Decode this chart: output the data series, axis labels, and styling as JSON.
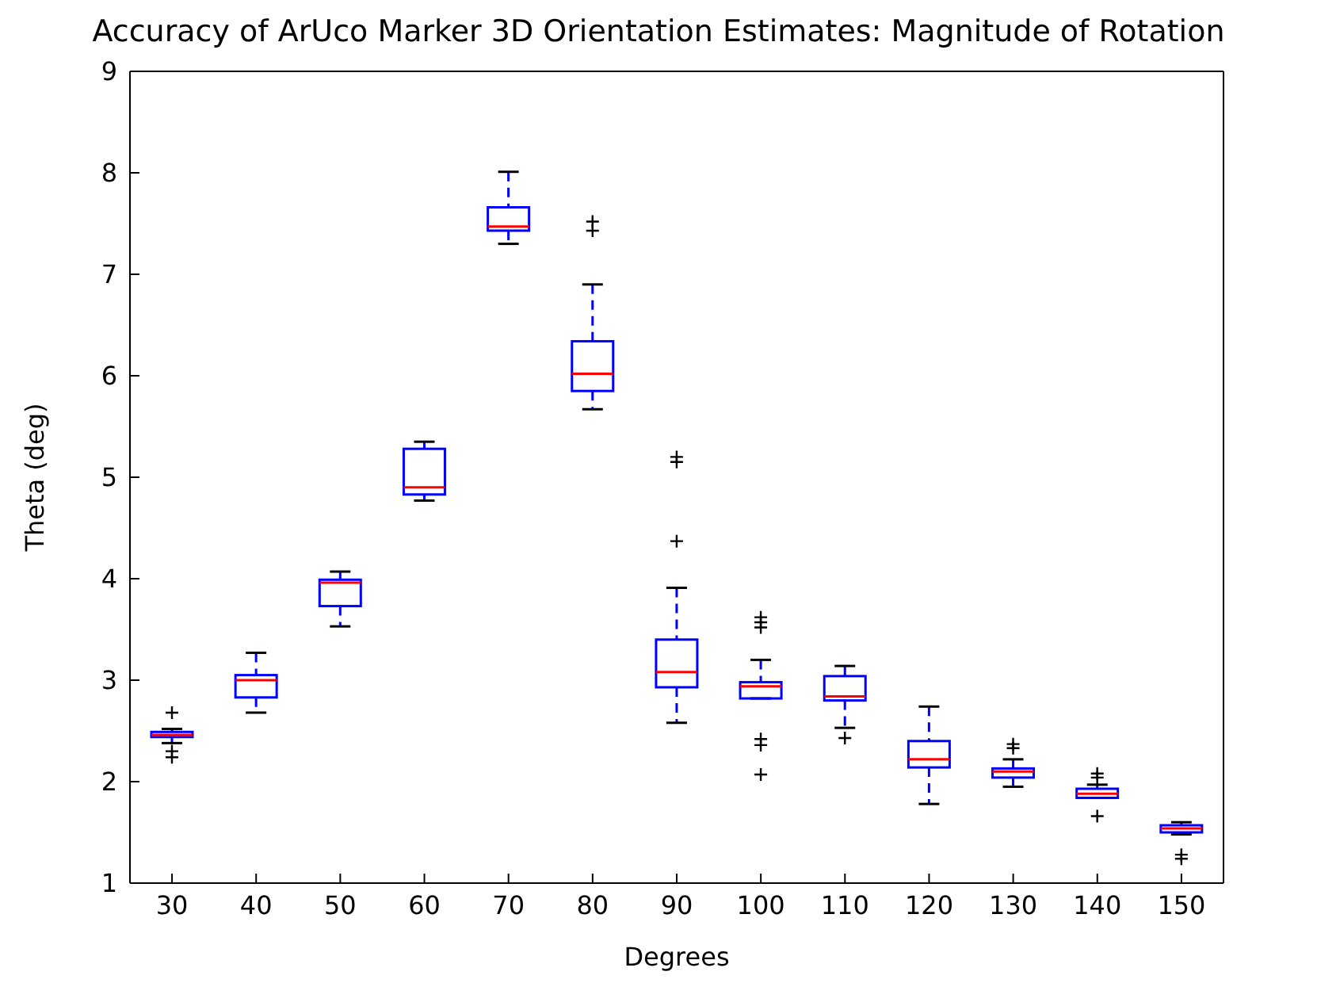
{
  "chart_data": {
    "type": "box",
    "title": "Accuracy of ArUco Marker 3D Orientation Estimates: Magnitude of Rotation",
    "xlabel": "Degrees",
    "ylabel": "Theta (deg)",
    "categories": [
      "30",
      "40",
      "50",
      "60",
      "70",
      "80",
      "90",
      "100",
      "110",
      "120",
      "130",
      "140",
      "150"
    ],
    "color": "#0000ff",
    "boxes": [
      {
        "low": 2.38,
        "q1": 2.44,
        "median": 2.46,
        "q3": 2.49,
        "high": 2.52,
        "outliers": [
          2.68,
          2.3,
          2.24
        ]
      },
      {
        "low": 2.68,
        "q1": 2.83,
        "median": 3.0,
        "q3": 3.05,
        "high": 3.27
      },
      {
        "low": 3.53,
        "q1": 3.73,
        "median": 3.96,
        "q3": 3.99,
        "high": 4.07
      },
      {
        "low": 4.77,
        "q1": 4.83,
        "median": 4.9,
        "q3": 5.28,
        "high": 5.35
      },
      {
        "low": 7.3,
        "q1": 7.43,
        "median": 7.47,
        "q3": 7.66,
        "high": 8.01
      },
      {
        "low": 5.67,
        "q1": 5.85,
        "median": 6.02,
        "q3": 6.34,
        "high": 6.9,
        "outliers": [
          7.43,
          7.52
        ]
      },
      {
        "low": 2.58,
        "q1": 2.93,
        "median": 3.08,
        "q3": 3.4,
        "high": 3.91,
        "outliers": [
          4.37,
          5.15,
          5.2
        ]
      },
      {
        "low": 2.82,
        "q1": 2.82,
        "median": 2.94,
        "q3": 2.98,
        "high": 3.2,
        "outliers": [
          3.52,
          3.57,
          3.62,
          2.42,
          2.36,
          2.07
        ]
      },
      {
        "low": 2.53,
        "q1": 2.8,
        "median": 2.84,
        "q3": 3.04,
        "high": 3.14,
        "outliers": [
          2.43
        ]
      },
      {
        "low": 1.78,
        "q1": 2.14,
        "median": 2.22,
        "q3": 2.4,
        "high": 2.74
      },
      {
        "low": 1.95,
        "q1": 2.04,
        "median": 2.1,
        "q3": 2.13,
        "high": 2.22,
        "outliers": [
          2.33,
          2.37
        ]
      },
      {
        "low": 1.84,
        "q1": 1.84,
        "median": 1.88,
        "q3": 1.93,
        "high": 1.97,
        "outliers": [
          2.04,
          2.08,
          1.66
        ]
      },
      {
        "low": 1.48,
        "q1": 1.5,
        "median": 1.54,
        "q3": 1.57,
        "high": 1.6,
        "outliers": [
          1.28,
          1.24
        ]
      }
    ],
    "ylim": [
      1,
      9
    ],
    "yticks": [
      1,
      2,
      3,
      4,
      5,
      6,
      7,
      8,
      9
    ],
    "grid": false
  }
}
